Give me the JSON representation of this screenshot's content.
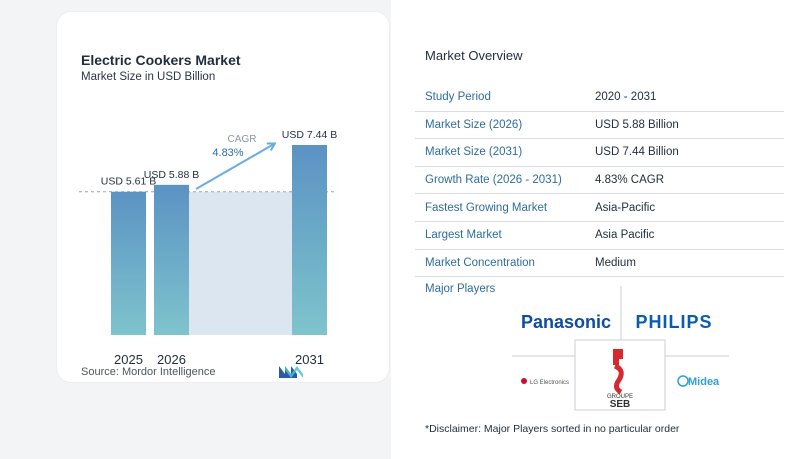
{
  "chart_data": {
    "type": "bar",
    "title": "Electric Cookers Market",
    "subtitle": "Market Size in USD Billion",
    "categories": [
      "2025",
      "2026",
      "2031"
    ],
    "values": [
      5.61,
      5.88,
      7.44
    ],
    "value_labels": [
      "USD 5.61 B",
      "USD 5.88 B",
      "USD 7.44 B"
    ],
    "cagr_label": "CAGR",
    "cagr_value": "4.83%",
    "grid": false,
    "dashed_reference_at": 5.61
  },
  "colors": {
    "bar_top": "#5b93c4",
    "bar_bottom": "#7ec4cc",
    "shaded_region": "#dce6f0",
    "accent_blue": "#2e6d9e",
    "arrow": "#6aaedb"
  },
  "source_text": "Source:  Mordor Intelligence",
  "source_logo_icon": "mordor-intelligence-logo-icon",
  "overview": {
    "title": "Market Overview",
    "rows": [
      {
        "label": "Study Period",
        "value": "2020 - 2031"
      },
      {
        "label": "Market Size (2026)",
        "value": "USD 5.88 Billion"
      },
      {
        "label": "Market Size (2031)",
        "value": "USD 7.44 Billion"
      },
      {
        "label": "Growth Rate (2026 - 2031)",
        "value": "4.83% CAGR"
      },
      {
        "label": "Fastest Growing Market",
        "value": "Asia-Pacific"
      },
      {
        "label": "Largest Market",
        "value": "Asia Pacific"
      },
      {
        "label": "Market Concentration",
        "value": "Medium"
      }
    ]
  },
  "players": {
    "title": "Major Players",
    "logos": [
      {
        "name": "panasonic",
        "text": "Panasonic"
      },
      {
        "name": "philips",
        "text": "PHILIPS"
      },
      {
        "name": "lg-electronics",
        "text": "LG Electronics"
      },
      {
        "name": "groupe-seb",
        "text": "SEB",
        "sub": "GROUPE"
      },
      {
        "name": "midea",
        "text": "Midea"
      }
    ]
  },
  "disclaimer": "*Disclaimer: Major Players sorted in no particular order"
}
